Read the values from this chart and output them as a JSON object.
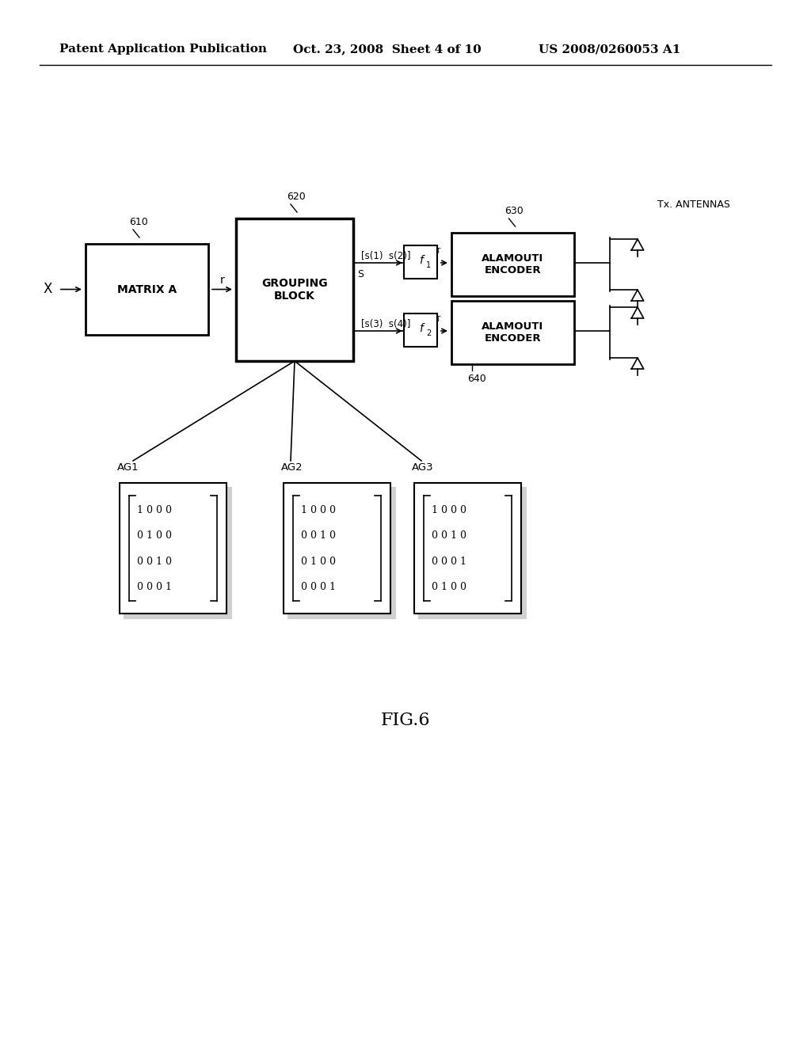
{
  "bg_color": "#ffffff",
  "header_left": "Patent Application Publication",
  "header_mid": "Oct. 23, 2008  Sheet 4 of 10",
  "header_right": "US 2008/0260053 A1",
  "fig_label": "FIG.6",
  "label_610": "610",
  "label_620": "620",
  "label_630": "630",
  "label_640": "640",
  "matrix_a_text": "MATRIX A",
  "grouping_block_text": "GROUPING\nBLOCK",
  "alamouti1_text": "ALAMOUTI\nENCODER",
  "alamouti2_text": "ALAMOUTI\nENCODER",
  "x_label": "X",
  "r_label": "r",
  "s_label": "S",
  "f1_label": "f1",
  "f2_label": "f2",
  "tx_antennas_label": "Tx. ANTENNAS",
  "signal1_label": "[s(1)  s(2)]",
  "signal2_label": "[s(3)  s(4)]",
  "ag1_label": "AG1",
  "ag2_label": "AG2",
  "ag3_label": "AG3",
  "ag1_matrix": [
    "1 0 0 0",
    "0 1 0 0",
    "0 0 1 0",
    "0 0 0 1"
  ],
  "ag2_matrix": [
    "1 0 0 0",
    "0 0 1 0",
    "0 1 0 0",
    "0 0 0 1"
  ],
  "ag3_matrix": [
    "1 0 0 0",
    "0 0 1 0",
    "0 0 0 1",
    "0 1 0 0"
  ]
}
